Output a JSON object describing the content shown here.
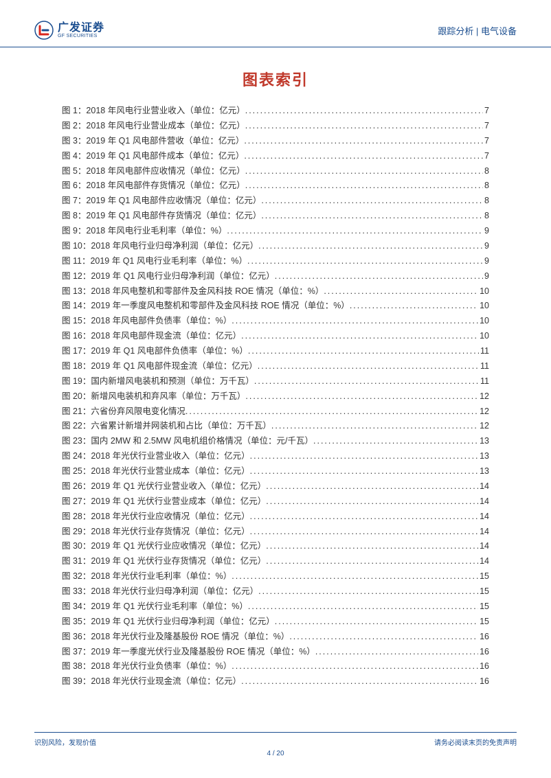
{
  "header": {
    "logo_main": "广发证券",
    "logo_sub": "GF SECURITIES",
    "right_text": "跟踪分析 | 电气设备"
  },
  "title": "图表索引",
  "toc": [
    {
      "label": "图 1：2018 年风电行业营业收入（单位：亿元）",
      "page": "7"
    },
    {
      "label": "图 2：2018 年风电行业营业成本（单位：亿元）",
      "page": "7"
    },
    {
      "label": "图 3：2019 年 Q1 风电部件营收（单位：亿元）",
      "page": "7"
    },
    {
      "label": "图 4：2019 年 Q1 风电部件成本（单位：亿元）",
      "page": "7"
    },
    {
      "label": "图 5：2018 年风电部件应收情况（单位：亿元）",
      "page": "8"
    },
    {
      "label": "图 6：2018 年风电部件存货情况（单位：亿元）",
      "page": "8"
    },
    {
      "label": "图 7：2019 年 Q1 风电部件应收情况（单位：亿元）",
      "page": "8"
    },
    {
      "label": "图 8：2019 年 Q1 风电部件存货情况（单位：亿元）",
      "page": "8"
    },
    {
      "label": "图 9：2018 年风电行业毛利率（单位：%）",
      "page": "9"
    },
    {
      "label": "图 10：2018 年风电行业归母净利润（单位：亿元）",
      "page": "9"
    },
    {
      "label": "图 11：2019 年 Q1 风电行业毛利率（单位：%）",
      "page": "9"
    },
    {
      "label": "图 12：2019 年 Q1 风电行业归母净利润（单位：亿元）",
      "page": "9"
    },
    {
      "label": "图 13：2018 年风电整机和零部件及金风科技 ROE 情况（单位：%）",
      "page": "10"
    },
    {
      "label": "图 14：2019 年一季度风电整机和零部件及金风科技 ROE 情况（单位：%）",
      "page": "10"
    },
    {
      "label": "图 15：2018 年风电部件负债率（单位：%）",
      "page": "10"
    },
    {
      "label": "图 16：2018 年风电部件现金流（单位：亿元）",
      "page": "10"
    },
    {
      "label": "图 17：2019 年 Q1 风电部件负债率（单位：%）",
      "page": "11"
    },
    {
      "label": "图 18：2019 年 Q1 风电部件现金流（单位：亿元）",
      "page": "11"
    },
    {
      "label": "图 19：国内新增风电装机和预测（单位：万千瓦）",
      "page": "11"
    },
    {
      "label": "图 20：新增风电装机和弃风率（单位：万千瓦）",
      "page": "12"
    },
    {
      "label": "图 21：六省份弃风限电变化情况",
      "page": "12"
    },
    {
      "label": "图 22：六省累计新增并网装机和占比（单位：万千瓦）",
      "page": "12"
    },
    {
      "label": "图 23：国内 2MW 和 2.5MW 风电机组价格情况（单位：元/千瓦）",
      "page": "13"
    },
    {
      "label": "图 24：2018 年光伏行业营业收入（单位：亿元）",
      "page": "13"
    },
    {
      "label": "图 25：2018 年光伏行业营业成本（单位：亿元）",
      "page": "13"
    },
    {
      "label": "图 26：2019 年 Q1 光伏行业营业收入（单位：亿元）",
      "page": "14"
    },
    {
      "label": "图 27：2019 年 Q1 光伏行业营业成本（单位：亿元）",
      "page": "14"
    },
    {
      "label": "图 28：2018 年光伏行业应收情况（单位：亿元）",
      "page": "14"
    },
    {
      "label": "图 29：2018 年光伏行业存货情况（单位：亿元）",
      "page": "14"
    },
    {
      "label": "图 30：2019 年 Q1 光伏行业应收情况（单位：亿元）",
      "page": "14"
    },
    {
      "label": "图 31：2019 年 Q1 光伏行业存货情况（单位：亿元）",
      "page": "14"
    },
    {
      "label": "图 32：2018 年光伏行业毛利率（单位：%）",
      "page": "15"
    },
    {
      "label": "图 33：2018 年光伏行业归母净利润（单位：亿元）",
      "page": "15"
    },
    {
      "label": "图 34：2019 年 Q1 光伏行业毛利率（单位：%）",
      "page": "15"
    },
    {
      "label": "图 35：2019 年 Q1 光伏行业归母净利润（单位：亿元）",
      "page": "15"
    },
    {
      "label": "图 36：2018 年光伏行业及隆基股份 ROE 情况（单位：%）",
      "page": "16"
    },
    {
      "label": "图 37：2019 年一季度光伏行业及隆基股份 ROE 情况（单位：%）",
      "page": "16"
    },
    {
      "label": "图 38：2018 年光伏行业负债率（单位：%）",
      "page": "16"
    },
    {
      "label": "图 39：2018 年光伏行业现金流（单位：亿元）",
      "page": "16"
    }
  ],
  "footer": {
    "left": "识别风险，发现价值",
    "right": "请务必阅读末页的免责声明",
    "page_current": "4",
    "page_total": "20"
  },
  "colors": {
    "primary": "#1a4d8f",
    "title": "#c0392b",
    "logo_red": "#d9251c",
    "text": "#333333"
  }
}
